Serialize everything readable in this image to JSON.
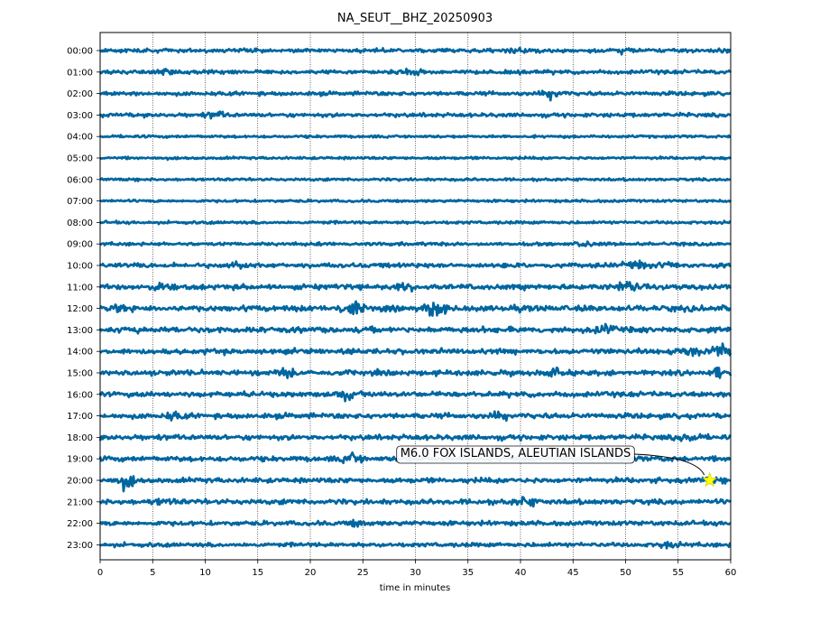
{
  "chart_data": {
    "type": "line",
    "title": "NA_SEUT__BHZ_20250903",
    "xlabel": "time in minutes",
    "ylabel": "",
    "xlim": [
      0,
      60
    ],
    "x_ticks": [
      "0",
      "5",
      "10",
      "15",
      "20",
      "25",
      "30",
      "35",
      "40",
      "45",
      "50",
      "55",
      "60"
    ],
    "row_labels": [
      "00:00",
      "01:00",
      "02:00",
      "03:00",
      "04:00",
      "05:00",
      "06:00",
      "07:00",
      "08:00",
      "09:00",
      "10:00",
      "11:00",
      "12:00",
      "13:00",
      "14:00",
      "15:00",
      "16:00",
      "17:00",
      "18:00",
      "19:00",
      "20:00",
      "21:00",
      "22:00",
      "23:00"
    ],
    "trace_color": "#00669f",
    "grid": true,
    "grid_style": "dotted vertical",
    "amplitude": [
      0.6,
      0.6,
      0.6,
      0.6,
      0.4,
      0.4,
      0.4,
      0.4,
      0.45,
      0.5,
      0.7,
      0.8,
      0.9,
      0.9,
      0.8,
      0.8,
      0.8,
      0.8,
      0.8,
      0.8,
      0.8,
      0.8,
      0.7,
      0.65
    ],
    "bursts": [
      {
        "row": 0,
        "minute": 40,
        "strength": 1.6
      },
      {
        "row": 0,
        "minute": 50,
        "strength": 1.5
      },
      {
        "row": 1,
        "minute": 6,
        "strength": 1.4
      },
      {
        "row": 1,
        "minute": 29.5,
        "strength": 1.8
      },
      {
        "row": 2,
        "minute": 43,
        "strength": 2.0
      },
      {
        "row": 3,
        "minute": 11,
        "strength": 1.6
      },
      {
        "row": 9,
        "minute": 46,
        "strength": 1.6
      },
      {
        "row": 10,
        "minute": 13,
        "strength": 1.4
      },
      {
        "row": 10,
        "minute": 51,
        "strength": 1.8
      },
      {
        "row": 10,
        "minute": 54,
        "strength": 1.5
      },
      {
        "row": 11,
        "minute": 6,
        "strength": 1.7
      },
      {
        "row": 11,
        "minute": 29,
        "strength": 1.5
      },
      {
        "row": 11,
        "minute": 50,
        "strength": 1.8
      },
      {
        "row": 12,
        "minute": 24,
        "strength": 2.0
      },
      {
        "row": 12,
        "minute": 32,
        "strength": 2.2
      },
      {
        "row": 12,
        "minute": 2,
        "strength": 1.4
      },
      {
        "row": 13,
        "minute": 48,
        "strength": 1.6
      },
      {
        "row": 14,
        "minute": 56,
        "strength": 1.8
      },
      {
        "row": 14,
        "minute": 59,
        "strength": 2.0
      },
      {
        "row": 15,
        "minute": 18,
        "strength": 1.5
      },
      {
        "row": 15,
        "minute": 43,
        "strength": 1.5
      },
      {
        "row": 15,
        "minute": 59,
        "strength": 1.8
      },
      {
        "row": 16,
        "minute": 23.5,
        "strength": 1.8
      },
      {
        "row": 17,
        "minute": 7,
        "strength": 1.5
      },
      {
        "row": 17,
        "minute": 38,
        "strength": 1.5
      },
      {
        "row": 18,
        "minute": 56,
        "strength": 1.7
      },
      {
        "row": 19,
        "minute": 24,
        "strength": 1.8
      },
      {
        "row": 20,
        "minute": 2.5,
        "strength": 2.0
      },
      {
        "row": 20,
        "minute": 58,
        "strength": 1.3
      },
      {
        "row": 21,
        "minute": 40.5,
        "strength": 1.7
      },
      {
        "row": 21,
        "minute": 6,
        "strength": 1.4
      },
      {
        "row": 22,
        "minute": 24.5,
        "strength": 1.5
      },
      {
        "row": 23,
        "minute": 54,
        "strength": 1.5
      }
    ],
    "annotations": [
      {
        "text": "M6.0 FOX ISLANDS, ALEUTIAN ISLANDS",
        "row": 20,
        "minute": 58,
        "marker": "star",
        "marker_color": "#ffff00"
      }
    ]
  }
}
